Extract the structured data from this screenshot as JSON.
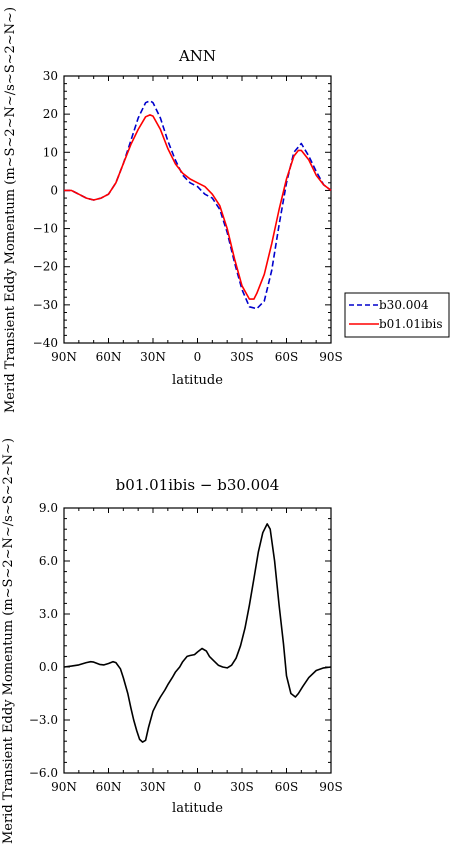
{
  "chart_data": [
    {
      "type": "line",
      "title": "ANN",
      "xlabel": "latitude",
      "ylabel": "Merid Transient Eddy Momentum (m~S~2~N~/s~S~2~N~)",
      "xlim": [
        90,
        -90
      ],
      "ylim": [
        -40,
        30
      ],
      "xticks": [
        90,
        60,
        30,
        0,
        -30,
        -60,
        -90
      ],
      "xtick_labels": [
        "90N",
        "60N",
        "30N",
        "0",
        "30S",
        "60S",
        "90S"
      ],
      "yticks": [
        -40,
        -30,
        -20,
        -10,
        0,
        10,
        20,
        30
      ],
      "ytick_labels": [
        "−40",
        "−30",
        "−20",
        "−10",
        "0",
        "10",
        "20",
        "30"
      ],
      "legend_position": "right",
      "series": [
        {
          "name": "b30.004",
          "color": "#0000cc",
          "dash": "dashed",
          "x": [
            90,
            85,
            80,
            75,
            70,
            65,
            60,
            55,
            50,
            45,
            40,
            35,
            32,
            30,
            25,
            20,
            15,
            10,
            5,
            0,
            -5,
            -10,
            -15,
            -20,
            -25,
            -30,
            -35,
            -40,
            -45,
            -50,
            -55,
            -60,
            -65,
            -70,
            -75,
            -80,
            -85,
            -90
          ],
          "y": [
            0,
            0,
            -1,
            -2,
            -2.5,
            -2,
            -1,
            2,
            7,
            13,
            19,
            23,
            23.5,
            23,
            19,
            13,
            8,
            4,
            2,
            1,
            -1,
            -2,
            -5,
            -11,
            -19,
            -26,
            -30.5,
            -31,
            -29,
            -21,
            -9,
            2,
            10,
            12.3,
            9,
            5,
            1.5,
            0
          ]
        },
        {
          "name": "b01.01ibis",
          "color": "#ff0000",
          "dash": "solid",
          "x": [
            90,
            85,
            80,
            75,
            70,
            65,
            60,
            55,
            50,
            45,
            40,
            35,
            32,
            30,
            25,
            20,
            15,
            10,
            5,
            0,
            -5,
            -10,
            -15,
            -20,
            -25,
            -30,
            -35,
            -38,
            -40,
            -45,
            -50,
            -55,
            -60,
            -65,
            -68,
            -70,
            -75,
            -80,
            -85,
            -90
          ],
          "y": [
            0,
            0,
            -1,
            -2,
            -2.5,
            -2,
            -1,
            2,
            7,
            12,
            16,
            19.3,
            19.8,
            19.5,
            16,
            11,
            7,
            4.5,
            3,
            2,
            1,
            -1,
            -4,
            -10,
            -18,
            -25,
            -28.5,
            -28.5,
            -27,
            -22,
            -14,
            -5,
            3,
            9,
            10.5,
            10.5,
            8,
            4,
            1.5,
            0
          ]
        }
      ]
    },
    {
      "type": "line",
      "title": "b01.01ibis − b30.004",
      "xlabel": "latitude",
      "ylabel": "Merid Transient Eddy Momentum (m~S~2~N~/s~S~2~N~)",
      "xlim": [
        90,
        -90
      ],
      "ylim": [
        -6,
        9
      ],
      "xticks": [
        90,
        60,
        30,
        0,
        -30,
        -60,
        -90
      ],
      "xtick_labels": [
        "90N",
        "60N",
        "30N",
        "0",
        "30S",
        "60S",
        "90S"
      ],
      "yticks": [
        -6,
        -3,
        0,
        3,
        6,
        9
      ],
      "ytick_labels": [
        "−6.0",
        "−3.0",
        "0.0",
        "3.0",
        "6.0",
        "9.0"
      ],
      "series": [
        {
          "color": "#000000",
          "dash": "solid",
          "x": [
            90,
            85,
            80,
            75,
            72,
            70,
            66,
            63,
            60,
            57,
            55,
            52,
            50,
            47,
            45,
            43,
            41,
            39,
            37,
            35,
            33,
            30,
            27,
            25,
            22,
            20,
            17,
            15,
            12,
            10,
            7,
            5,
            2,
            0,
            -3,
            -6,
            -8,
            -11,
            -14,
            -17,
            -20,
            -23,
            -26,
            -29,
            -32,
            -35,
            -38,
            -41,
            -44,
            -47,
            -49,
            -52,
            -55,
            -58,
            -60,
            -63,
            -66,
            -68,
            -71,
            -75,
            -80,
            -85,
            -90
          ],
          "y": [
            0,
            0.05,
            0.12,
            0.25,
            0.3,
            0.28,
            0.15,
            0.12,
            0.2,
            0.3,
            0.25,
            -0.1,
            -0.6,
            -1.5,
            -2.3,
            -3.0,
            -3.6,
            -4.1,
            -4.25,
            -4.15,
            -3.4,
            -2.5,
            -2.0,
            -1.7,
            -1.3,
            -1.0,
            -0.6,
            -0.3,
            0,
            0.3,
            0.6,
            0.65,
            0.7,
            0.85,
            1.05,
            0.9,
            0.6,
            0.35,
            0.1,
            0,
            -0.05,
            0.1,
            0.5,
            1.2,
            2.2,
            3.5,
            5.0,
            6.5,
            7.6,
            8.1,
            7.8,
            6.0,
            3.5,
            1.3,
            -0.5,
            -1.5,
            -1.7,
            -1.5,
            -1.1,
            -0.6,
            -0.2,
            -0.05,
            0
          ]
        }
      ]
    }
  ]
}
